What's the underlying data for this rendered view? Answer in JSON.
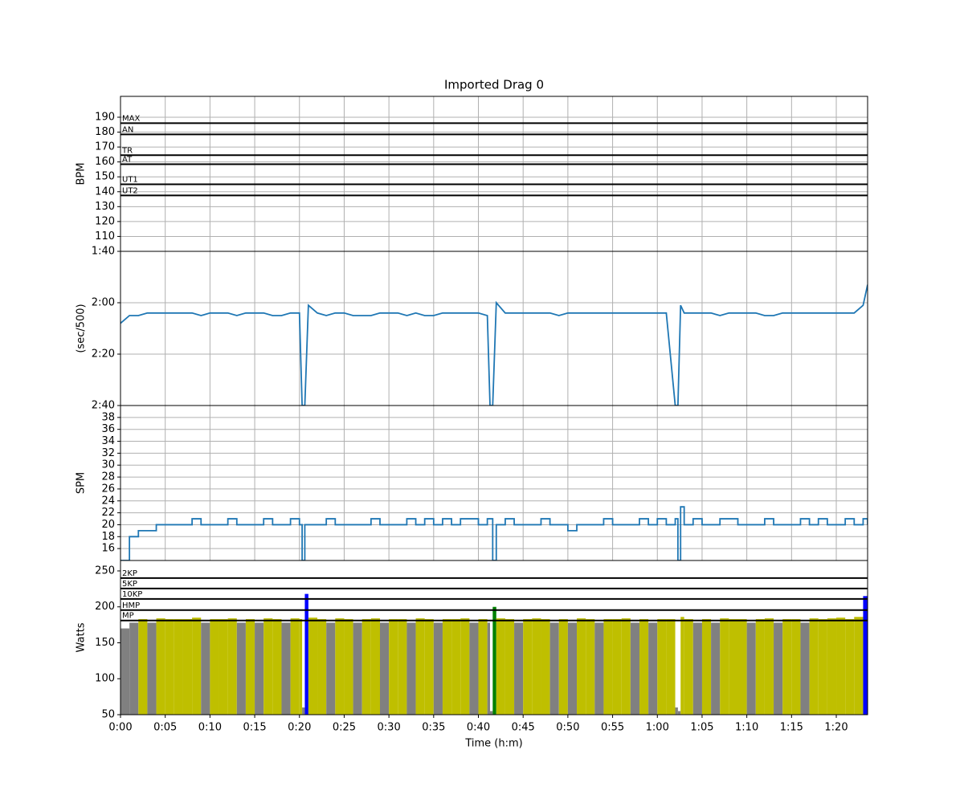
{
  "chart_data": [
    {
      "type": "zones",
      "title": "Imported Drag 0",
      "ylabel": "BPM",
      "xlim": [
        0,
        83.5
      ],
      "ylim": [
        100,
        204
      ],
      "yticks": [
        110,
        120,
        130,
        140,
        150,
        160,
        170,
        180,
        190
      ],
      "grid": true,
      "zones": [
        {
          "name": "MAX",
          "value": 186
        },
        {
          "name": "AN",
          "value": 178.5
        },
        {
          "name": "TR",
          "value": 164.5
        },
        {
          "name": "AT",
          "value": 158.5
        },
        {
          "name": "UT1",
          "value": 145
        },
        {
          "name": "UT2",
          "value": 137.5
        }
      ]
    },
    {
      "type": "line",
      "ylabel": "(sec/500)",
      "xlim": [
        0,
        83.5
      ],
      "ylim": [
        160,
        100
      ],
      "yticks": [
        {
          "value": 100,
          "label": "1:40"
        },
        {
          "value": 120,
          "label": "2:00"
        },
        {
          "value": 140,
          "label": "2:20"
        },
        {
          "value": 160,
          "label": "2:40"
        }
      ],
      "grid": true,
      "x": [
        0,
        1,
        2,
        3,
        4,
        5,
        6,
        7,
        8,
        9,
        10,
        11,
        12,
        13,
        14,
        15,
        16,
        17,
        18,
        19,
        20,
        20.3,
        20.6,
        21,
        22,
        23,
        24,
        25,
        26,
        27,
        28,
        29,
        30,
        31,
        32,
        33,
        34,
        35,
        36,
        37,
        38,
        39,
        40,
        41,
        41.3,
        41.6,
        42,
        43,
        44,
        45,
        46,
        47,
        48,
        49,
        50,
        51,
        52,
        53,
        54,
        55,
        56,
        57,
        58,
        59,
        60,
        61,
        62,
        62.3,
        62.6,
        63,
        64,
        65,
        66,
        67,
        68,
        69,
        70,
        71,
        72,
        73,
        74,
        75,
        76,
        77,
        78,
        79,
        80,
        81,
        82,
        83,
        83.5
      ],
      "series": [
        {
          "color": "#1f77b4",
          "values": [
            128,
            125,
            125,
            124,
            124,
            124,
            124,
            124,
            124,
            125,
            124,
            124,
            124,
            125,
            124,
            124,
            124,
            125,
            125,
            124,
            124,
            160,
            160,
            121,
            124,
            125,
            124,
            124,
            125,
            125,
            125,
            124,
            124,
            124,
            125,
            124,
            125,
            125,
            124,
            124,
            124,
            124,
            124,
            125,
            160,
            160,
            120,
            124,
            124,
            124,
            124,
            124,
            124,
            125,
            124,
            124,
            124,
            124,
            124,
            124,
            124,
            124,
            124,
            124,
            124,
            124,
            160,
            160,
            121,
            124,
            124,
            124,
            124,
            125,
            124,
            124,
            124,
            124,
            125,
            125,
            124,
            124,
            124,
            124,
            124,
            124,
            124,
            124,
            124,
            121,
            113
          ]
        }
      ]
    },
    {
      "type": "step",
      "ylabel": "SPM",
      "xlim": [
        0,
        83.5
      ],
      "ylim": [
        14,
        40
      ],
      "yticks": [
        16,
        18,
        20,
        22,
        24,
        26,
        28,
        30,
        32,
        34,
        36,
        38
      ],
      "grid": true,
      "x": [
        0,
        1,
        2,
        3,
        4,
        5,
        6,
        7,
        8,
        9,
        10,
        11,
        12,
        13,
        14,
        15,
        16,
        17,
        18,
        19,
        20,
        20.3,
        20.6,
        21,
        22,
        23,
        24,
        25,
        26,
        27,
        28,
        29,
        30,
        31,
        32,
        33,
        34,
        35,
        36,
        37,
        38,
        39,
        40,
        41,
        41.3,
        41.6,
        42,
        43,
        44,
        45,
        46,
        47,
        48,
        49,
        50,
        51,
        52,
        53,
        54,
        55,
        56,
        57,
        58,
        59,
        60,
        61,
        62,
        62.3,
        62.6,
        63,
        64,
        65,
        66,
        67,
        68,
        69,
        70,
        71,
        72,
        73,
        74,
        75,
        76,
        77,
        78,
        79,
        80,
        81,
        82,
        83,
        83.5
      ],
      "series": [
        {
          "color": "#1f77b4",
          "values": [
            14,
            18,
            19,
            19,
            20,
            20,
            20,
            20,
            21,
            20,
            20,
            20,
            21,
            20,
            20,
            20,
            21,
            20,
            20,
            21,
            20,
            14,
            20,
            20,
            20,
            21,
            20,
            20,
            20,
            20,
            21,
            20,
            20,
            20,
            21,
            20,
            21,
            20,
            21,
            20,
            21,
            21,
            20,
            21,
            21,
            14,
            20,
            21,
            20,
            20,
            20,
            21,
            20,
            20,
            19,
            20,
            20,
            20,
            21,
            20,
            20,
            20,
            21,
            20,
            21,
            20,
            21,
            14,
            23,
            20,
            21,
            20,
            20,
            21,
            21,
            20,
            20,
            20,
            21,
            20,
            20,
            20,
            21,
            20,
            21,
            20,
            20,
            21,
            20,
            21,
            20
          ]
        }
      ]
    },
    {
      "type": "zonebar",
      "ylabel": "Watts",
      "xlabel": "Time (h:m)",
      "xlim": [
        0,
        83.5
      ],
      "ylim": [
        50,
        264.5
      ],
      "yticks": [
        50,
        100,
        150,
        200,
        250
      ],
      "grid": false,
      "xticks": [
        {
          "value": 0,
          "label": "0:00"
        },
        {
          "value": 5,
          "label": "0:05"
        },
        {
          "value": 10,
          "label": "0:10"
        },
        {
          "value": 15,
          "label": "0:15"
        },
        {
          "value": 20,
          "label": "0:20"
        },
        {
          "value": 25,
          "label": "0:25"
        },
        {
          "value": 30,
          "label": "0:30"
        },
        {
          "value": 35,
          "label": "0:35"
        },
        {
          "value": 40,
          "label": "0:40"
        },
        {
          "value": 45,
          "label": "0:45"
        },
        {
          "value": 50,
          "label": "0:50"
        },
        {
          "value": 55,
          "label": "0:55"
        },
        {
          "value": 60,
          "label": "1:00"
        },
        {
          "value": 65,
          "label": "1:05"
        },
        {
          "value": 70,
          "label": "1:10"
        },
        {
          "value": 75,
          "label": "1:15"
        },
        {
          "value": 80,
          "label": "1:20"
        }
      ],
      "zones": [
        {
          "name": "2KP",
          "value": 240
        },
        {
          "name": "5KP",
          "value": 225.5
        },
        {
          "name": "10KP",
          "value": 211
        },
        {
          "name": "HMP",
          "value": 195.5
        },
        {
          "name": "MP",
          "value": 181
        }
      ],
      "zone_colors": [
        "#808080",
        "#bfbf00",
        "#008000",
        "#0000ff",
        "#ff69b4",
        "#ff0000"
      ],
      "x": [
        0,
        1,
        2,
        3,
        4,
        5,
        6,
        7,
        8,
        9,
        10,
        11,
        12,
        13,
        14,
        15,
        16,
        17,
        18,
        19,
        20,
        20.3,
        20.6,
        21,
        22,
        23,
        24,
        25,
        26,
        27,
        28,
        29,
        30,
        31,
        32,
        33,
        34,
        35,
        36,
        37,
        38,
        39,
        40,
        41,
        41.3,
        41.6,
        42,
        43,
        44,
        45,
        46,
        47,
        48,
        49,
        50,
        51,
        52,
        53,
        54,
        55,
        56,
        57,
        58,
        59,
        60,
        61,
        62,
        62.3,
        62.6,
        63,
        64,
        65,
        66,
        67,
        68,
        69,
        70,
        71,
        72,
        73,
        74,
        75,
        76,
        77,
        78,
        79,
        80,
        81,
        82,
        83,
        83.5
      ],
      "values": [
        170,
        178,
        183,
        178,
        184,
        183,
        183,
        183,
        185,
        178,
        183,
        183,
        184,
        178,
        183,
        178,
        184,
        183,
        178,
        184,
        183,
        60,
        218,
        185,
        183,
        178,
        184,
        183,
        178,
        183,
        184,
        178,
        183,
        183,
        178,
        184,
        183,
        178,
        183,
        183,
        184,
        178,
        183,
        178,
        55,
        200,
        184,
        183,
        178,
        183,
        184,
        183,
        178,
        183,
        178,
        184,
        183,
        178,
        183,
        183,
        184,
        178,
        183,
        178,
        183,
        183,
        60,
        55,
        186,
        183,
        178,
        183,
        178,
        184,
        183,
        183,
        178,
        183,
        184,
        178,
        183,
        183,
        178,
        184,
        183,
        184,
        185,
        183,
        186,
        215,
        238
      ]
    }
  ]
}
